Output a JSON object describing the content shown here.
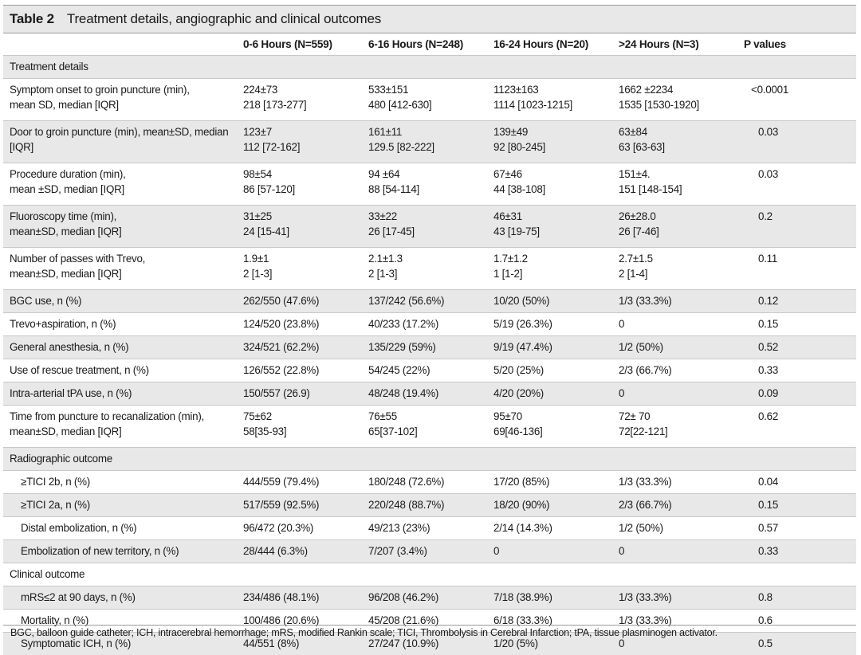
{
  "caption": {
    "number": "Table 2",
    "title": "Treatment details, angiographic and clinical outcomes"
  },
  "columns": [
    "",
    "0-6 Hours (N=559)",
    "6-16 Hours (N=248)",
    "16-24 Hours (N=20)",
    ">24 Hours (N=3)",
    "P values"
  ],
  "rows": [
    {
      "section": true,
      "label": [
        "Treatment details"
      ],
      "shade": true
    },
    {
      "label": [
        "Symptom onset to groin puncture (min),",
        "mean SD, median [IQR]"
      ],
      "c1": [
        "224±73",
        "218 [173-277]"
      ],
      "c2": [
        "533±151",
        "480 [412-630]"
      ],
      "c3": [
        "1123±163",
        "1114 [1023-1215]"
      ],
      "c4": [
        "1662 ±2234",
        "1535 [1530-1920]"
      ],
      "p": "<0.0001"
    },
    {
      "label": [
        "Door to groin puncture (min), mean±SD, median",
        "[IQR]"
      ],
      "c1": [
        "123±7",
        "112 [72-162]"
      ],
      "c2": [
        "161±11",
        "129.5 [82-222]"
      ],
      "c3": [
        "139±49",
        "92 [80-245]"
      ],
      "c4": [
        "63±84",
        "63 [63-63]"
      ],
      "p": "0.03",
      "shade": true
    },
    {
      "label": [
        "Procedure duration (min),",
        "mean ±SD, median [IQR]"
      ],
      "c1": [
        "98±54",
        "86 [57-120]"
      ],
      "c2": [
        "94 ±64",
        "88 [54-114]"
      ],
      "c3": [
        "67±46",
        "44 [38-108]"
      ],
      "c4": [
        "151±4.",
        "151 [148-154]"
      ],
      "p": "0.03"
    },
    {
      "label": [
        "Fluoroscopy time (min),",
        "mean±SD, median [IQR]"
      ],
      "c1": [
        "31±25",
        "24 [15-41]"
      ],
      "c2": [
        "33±22",
        "26 [17-45]"
      ],
      "c3": [
        "46±31",
        "43 [19-75]"
      ],
      "c4": [
        "26±28.0",
        "26 [7-46]"
      ],
      "p": "0.2",
      "shade": true
    },
    {
      "label": [
        "Number of passes with Trevo,",
        "mean±SD, median [IQR]"
      ],
      "c1": [
        "1.9±1",
        "2 [1-3]"
      ],
      "c2": [
        "2.1±1.3",
        "2 [1-3]"
      ],
      "c3": [
        "1.7±1.2",
        "1 [1-2]"
      ],
      "c4": [
        "2.7±1.5",
        "2 [1-4]"
      ],
      "p": "0.11"
    },
    {
      "label": [
        "BGC use, n (%)"
      ],
      "c1": [
        "262/550 (47.6%)"
      ],
      "c2": [
        "137/242 (56.6%)"
      ],
      "c3": [
        "10/20 (50%)"
      ],
      "c4": [
        "1/3 (33.3%)"
      ],
      "p": "0.12",
      "shade": true
    },
    {
      "label": [
        "Trevo+aspiration, n (%)"
      ],
      "c1": [
        "124/520 (23.8%)"
      ],
      "c2": [
        "40/233 (17.2%)"
      ],
      "c3": [
        "5/19 (26.3%)"
      ],
      "c4": [
        "0"
      ],
      "p": "0.15"
    },
    {
      "label": [
        "General anesthesia, n (%)"
      ],
      "c1": [
        "324/521 (62.2%)"
      ],
      "c2": [
        "135/229 (59%)"
      ],
      "c3": [
        "9/19 (47.4%)"
      ],
      "c4": [
        "1/2 (50%)"
      ],
      "p": "0.52",
      "shade": true
    },
    {
      "label": [
        "Use of rescue treatment, n (%)"
      ],
      "c1": [
        "126/552 (22.8%)"
      ],
      "c2": [
        "54/245 (22%)"
      ],
      "c3": [
        "5/20 (25%)"
      ],
      "c4": [
        "2/3 (66.7%)"
      ],
      "p": "0.33"
    },
    {
      "label": [
        "Intra-arterial tPA use, n (%)"
      ],
      "c1": [
        "150/557 (26.9)"
      ],
      "c2": [
        "48/248 (19.4%)"
      ],
      "c3": [
        "4/20 (20%)"
      ],
      "c4": [
        "0"
      ],
      "p": "0.09",
      "shade": true
    },
    {
      "label": [
        "Time from puncture to recanalization (min),",
        "mean±SD, median [IQR]"
      ],
      "c1": [
        "75±62",
        "58[35-93]"
      ],
      "c2": [
        "76±55",
        "65[37-102]"
      ],
      "c3": [
        "95±70",
        "69[46-136]"
      ],
      "c4": [
        "72± 70",
        "72[22-121]"
      ],
      "p": "0.62"
    },
    {
      "section": true,
      "label": [
        "Radiographic outcome"
      ],
      "shade": true
    },
    {
      "indent": true,
      "label": [
        "≥TICI 2b, n (%)"
      ],
      "c1": [
        "444/559 (79.4%)"
      ],
      "c2": [
        "180/248 (72.6%)"
      ],
      "c3": [
        "17/20 (85%)"
      ],
      "c4": [
        "1/3 (33.3%)"
      ],
      "p": "0.04"
    },
    {
      "indent": true,
      "label": [
        "≥TICI 2a, n (%)"
      ],
      "c1": [
        "517/559 (92.5%)"
      ],
      "c2": [
        "220/248 (88.7%)"
      ],
      "c3": [
        "18/20 (90%)"
      ],
      "c4": [
        "2/3 (66.7%)"
      ],
      "p": "0.15",
      "shade": true
    },
    {
      "indent": true,
      "label": [
        "Distal embolization, n (%)"
      ],
      "c1": [
        "96/472 (20.3%)"
      ],
      "c2": [
        "49/213 (23%)"
      ],
      "c3": [
        "2/14 (14.3%)"
      ],
      "c4": [
        "1/2 (50%)"
      ],
      "p": "0.57"
    },
    {
      "indent": true,
      "label": [
        "Embolization of new territory, n (%)"
      ],
      "c1": [
        "28/444 (6.3%)"
      ],
      "c2": [
        "7/207 (3.4%)"
      ],
      "c3": [
        "0"
      ],
      "c4": [
        "0"
      ],
      "p": "0.33",
      "shade": true
    },
    {
      "section": true,
      "label": [
        "Clinical outcome"
      ]
    },
    {
      "indent": true,
      "label": [
        "mRS≤2 at 90 days, n (%)"
      ],
      "c1": [
        "234/486 (48.1%)"
      ],
      "c2": [
        "96/208 (46.2%)"
      ],
      "c3": [
        "7/18 (38.9%)"
      ],
      "c4": [
        "1/3 (33.3%)"
      ],
      "p": "0.8",
      "shade": true
    },
    {
      "indent": true,
      "label": [
        "Mortality, n (%)"
      ],
      "c1": [
        "100/486 (20.6%)"
      ],
      "c2": [
        "45/208 (21.6%)"
      ],
      "c3": [
        "6/18 (33.3%)"
      ],
      "c4": [
        "1/3 (33.3%)"
      ],
      "p": "0.6"
    },
    {
      "indent": true,
      "label": [
        "Symptomatic ICH, n (%)"
      ],
      "c1": [
        "44/551 (8%)"
      ],
      "c2": [
        "27/247 (10.9%)"
      ],
      "c3": [
        "1/20 (5%)"
      ],
      "c4": [
        "0"
      ],
      "p": "0.5",
      "shade": true
    }
  ],
  "footnote": "BGC, balloon guide catheter; ICH, intracerebral hemorrhage; mRS, modified Rankin scale; TICI, Thrombolysis in Cerebral Infarction; tPA, tissue plasminogen activator."
}
